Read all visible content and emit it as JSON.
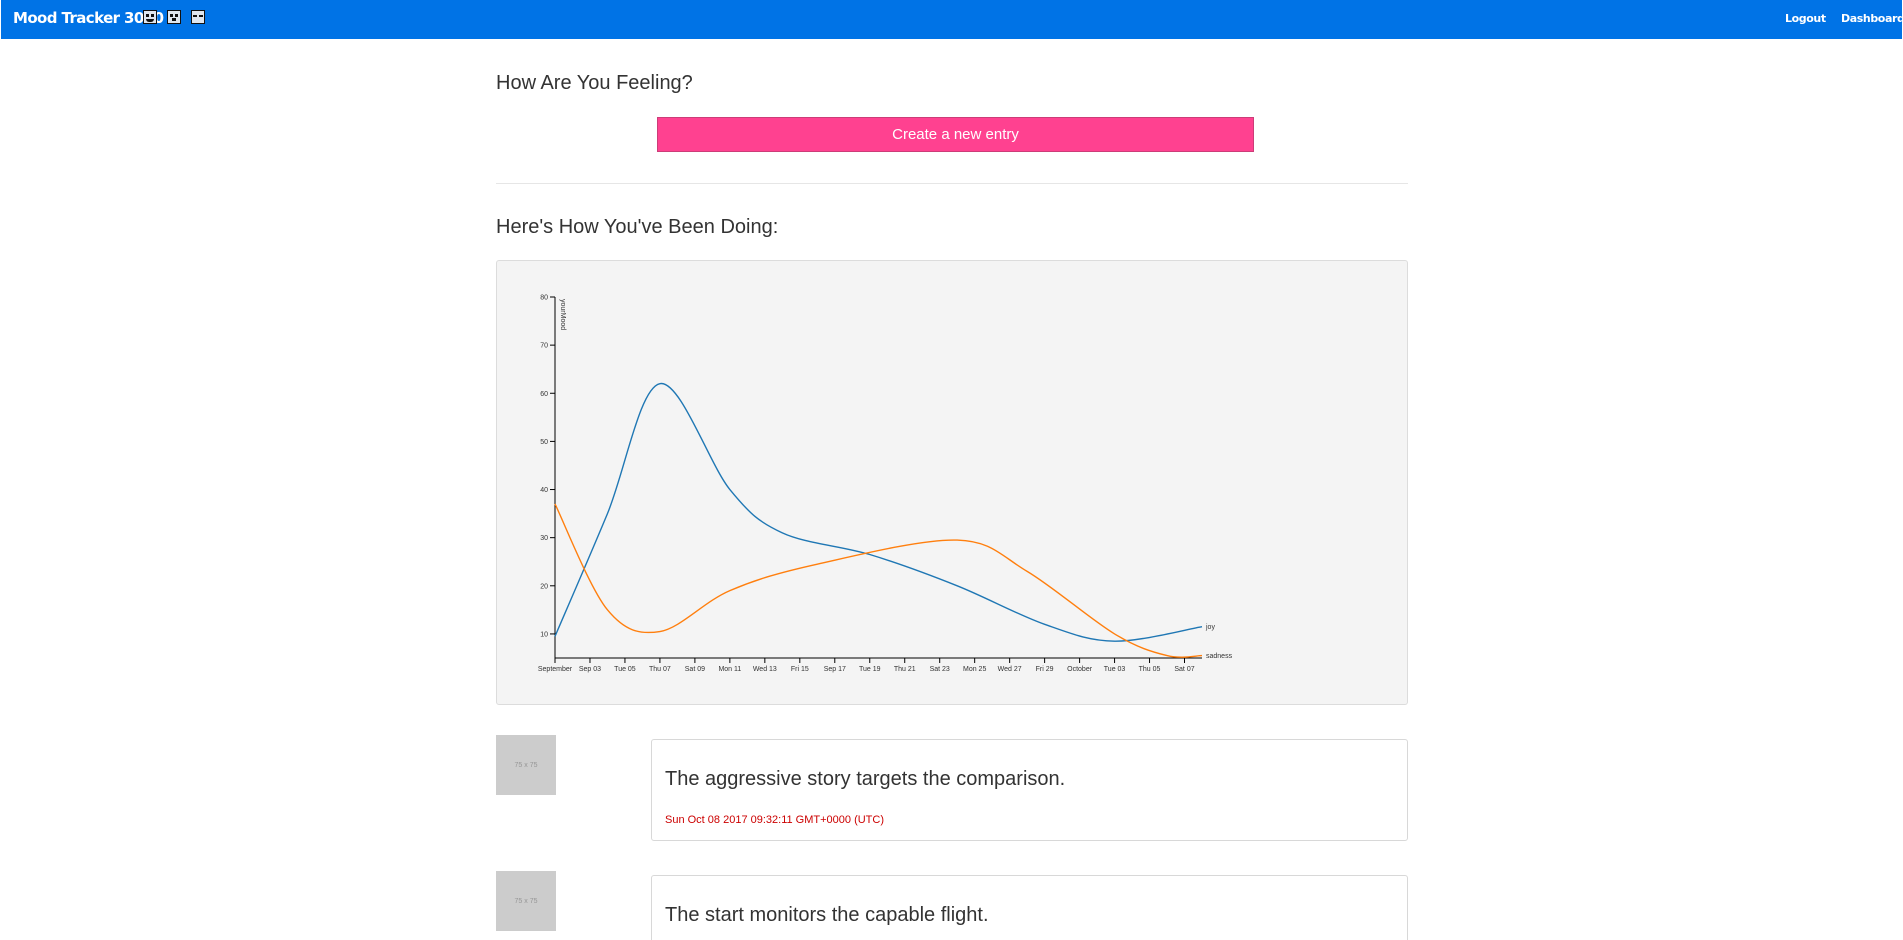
{
  "navbar": {
    "brand": "Mood Tracker 3000",
    "mood_icons": [
      "happy-face-icon",
      "surprised-face-icon",
      "neutral-face-icon"
    ],
    "logout_label": "Logout",
    "dashboard_label": "Dashboard",
    "color": "#0073e6"
  },
  "main": {
    "feeling_heading": "How Are You Feeling?",
    "new_entry_label": "Create a new entry",
    "new_entry_color": "#ff4190",
    "doing_heading": "Here's How You've Been Doing:"
  },
  "chart_data": {
    "type": "line",
    "ylabel": "yourMood",
    "ylim": [
      5,
      80
    ],
    "yticks": [
      10,
      20,
      30,
      40,
      50,
      60,
      70,
      80
    ],
    "x_axis": "dates",
    "xticks": [
      "September",
      "Sep 03",
      "Tue 05",
      "Thu 07",
      "Sat 09",
      "Mon 11",
      "Wed 13",
      "Fri 15",
      "Sep 17",
      "Tue 19",
      "Thu 21",
      "Sat 23",
      "Mon 25",
      "Wed 27",
      "Fri 29",
      "October",
      "Tue 03",
      "Thu 05",
      "Sat 07"
    ],
    "xlim": [
      "2017-09-01",
      "2017-10-08"
    ],
    "series": [
      {
        "name": "joy",
        "color": "#1f77b4",
        "points": [
          [
            "2017-09-01",
            9.5
          ],
          [
            "2017-09-04",
            35
          ],
          [
            "2017-09-07",
            62
          ],
          [
            "2017-09-11",
            40
          ],
          [
            "2017-09-14",
            31
          ],
          [
            "2017-09-19",
            26.5
          ],
          [
            "2017-09-24",
            20
          ],
          [
            "2017-09-29",
            12
          ],
          [
            "2017-10-03",
            8.5
          ],
          [
            "2017-10-08",
            11.5
          ]
        ]
      },
      {
        "name": "sadness",
        "color": "#ff7f0e",
        "points": [
          [
            "2017-09-01",
            37
          ],
          [
            "2017-09-04",
            15
          ],
          [
            "2017-09-07",
            10.5
          ],
          [
            "2017-09-11",
            19
          ],
          [
            "2017-09-16",
            24.5
          ],
          [
            "2017-09-24",
            29.5
          ],
          [
            "2017-09-28",
            23
          ],
          [
            "2017-10-03",
            10
          ],
          [
            "2017-10-06",
            5.5
          ],
          [
            "2017-10-08",
            5.5
          ]
        ]
      }
    ],
    "legend_placement": "line-end labels"
  },
  "entries": [
    {
      "thumb_label": "75 x 75",
      "text": "The aggressive story targets the comparison.",
      "date": "Sun Oct 08 2017 09:32:11 GMT+0000 (UTC)"
    },
    {
      "thumb_label": "75 x 75",
      "text": "The start monitors the capable flight.",
      "date": ""
    }
  ]
}
